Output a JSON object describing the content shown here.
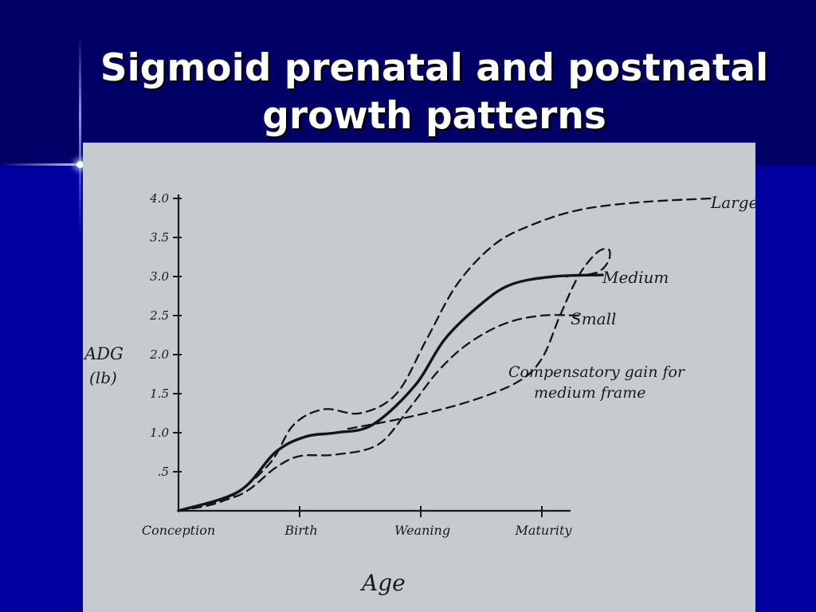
{
  "slide": {
    "title": "Sigmoid prenatal and postnatal growth patterns"
  },
  "chart_data": {
    "type": "line",
    "title": "",
    "xlabel": "Age",
    "ylabel": "ADG (lb)",
    "ylim": [
      0,
      4.0
    ],
    "y_ticks": [
      ".5",
      "1.0",
      "1.5",
      "2.0",
      "2.5",
      "3.0",
      "3.5",
      "4.0"
    ],
    "x_ticks": [
      "Conception",
      "Birth",
      "Weaning",
      "Maturity"
    ],
    "x_tick_positions": [
      0,
      1,
      2,
      3
    ],
    "series": [
      {
        "name": "Large",
        "style": "dashed",
        "x": [
          0,
          0.4,
          0.75,
          0.95,
          1.2,
          1.5,
          1.8,
          2.05,
          2.3,
          2.6,
          2.9,
          3.3,
          3.8,
          4.4
        ],
        "y": [
          0,
          0.15,
          0.6,
          1.1,
          1.3,
          1.25,
          1.5,
          2.2,
          2.9,
          3.4,
          3.65,
          3.85,
          3.95,
          4.0
        ]
      },
      {
        "name": "Medium",
        "style": "solid",
        "x": [
          0,
          0.5,
          0.8,
          1.05,
          1.3,
          1.6,
          1.95,
          2.2,
          2.5,
          2.75,
          3.1,
          3.5
        ],
        "y": [
          0,
          0.25,
          0.75,
          0.95,
          1.0,
          1.1,
          1.6,
          2.2,
          2.65,
          2.9,
          3.0,
          3.02
        ]
      },
      {
        "name": "Small",
        "style": "dashed",
        "x": [
          0,
          0.5,
          0.8,
          1.0,
          1.3,
          1.65,
          1.9,
          2.15,
          2.4,
          2.7,
          3.0,
          3.3
        ],
        "y": [
          0,
          0.2,
          0.55,
          0.7,
          0.72,
          0.85,
          1.3,
          1.8,
          2.15,
          2.4,
          2.5,
          2.5
        ]
      },
      {
        "name": "Compensatory gain for medium frame",
        "style": "dashed",
        "x": [
          1.4,
          1.9,
          2.4,
          2.8,
          3.0,
          3.15,
          3.3,
          3.45,
          3.55,
          3.55,
          3.45,
          3.2
        ],
        "y": [
          1.05,
          1.2,
          1.4,
          1.65,
          1.95,
          2.5,
          3.0,
          3.3,
          3.35,
          3.2,
          3.05,
          3.0
        ]
      }
    ],
    "annotations": [
      "Large",
      "Medium",
      "Small",
      "Compensatory gain for",
      "medium frame"
    ]
  }
}
